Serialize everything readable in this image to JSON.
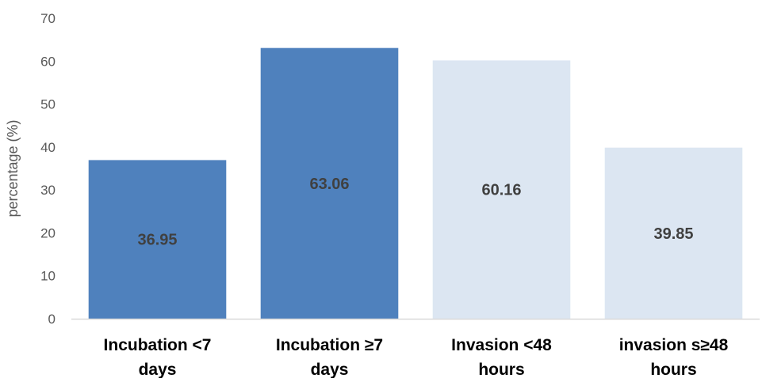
{
  "chart_data": {
    "type": "bar",
    "title": "",
    "xlabel": "",
    "ylabel": "percentage (%)",
    "ylim": [
      0,
      70
    ],
    "yticks": [
      0,
      10,
      20,
      30,
      40,
      50,
      60,
      70
    ],
    "grid": false,
    "legend": "none",
    "categories": [
      [
        "Incubation <7",
        "days"
      ],
      [
        "Incubation ≥7",
        "days"
      ],
      [
        "Invasion <48",
        "hours"
      ],
      [
        "invasion s≥48",
        "hours"
      ]
    ],
    "values": [
      36.95,
      63.06,
      60.16,
      39.85
    ],
    "data_labels": [
      "36.95",
      "63.06",
      "60.16",
      "39.85"
    ],
    "bar_colors": [
      "#4f81bd",
      "#4f81bd",
      "#dce6f2",
      "#dce6f2"
    ],
    "axis_color": "#d9d9d9"
  }
}
